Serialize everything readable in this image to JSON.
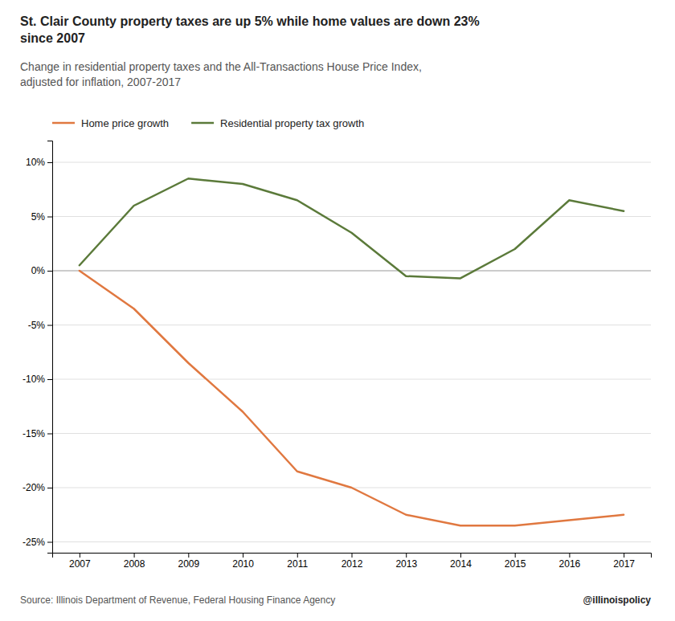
{
  "chart_data": {
    "type": "line",
    "title": "St. Clair County property taxes are up 5% while home values are down 23%\nsince 2007",
    "subtitle": "Change in residential property taxes and the All-Transactions House Price Index,\nadjusted for inflation, 2007-2017",
    "x": [
      2007,
      2008,
      2009,
      2010,
      2011,
      2012,
      2013,
      2014,
      2015,
      2016,
      2017
    ],
    "series": [
      {
        "name": "Home price growth",
        "color": "#E07840",
        "values": [
          0.0,
          -3.5,
          -8.5,
          -13.0,
          -18.5,
          -20.0,
          -22.5,
          -23.5,
          -23.5,
          -23.0,
          -22.5
        ]
      },
      {
        "name": "Residential property tax growth",
        "color": "#5B7A3A",
        "values": [
          0.5,
          6.0,
          8.5,
          8.0,
          6.5,
          3.5,
          -0.5,
          -0.7,
          2.0,
          6.5,
          5.5
        ]
      }
    ],
    "xlim": [
      2006.5,
      2017.5
    ],
    "xticks": [
      2007,
      2008,
      2009,
      2010,
      2011,
      2012,
      2013,
      2014,
      2015,
      2016,
      2017
    ],
    "ylim": [
      -26,
      12
    ],
    "yticks": [
      {
        "value": -25,
        "label": "-25%"
      },
      {
        "value": -20,
        "label": "-20%"
      },
      {
        "value": -15,
        "label": "-15%"
      },
      {
        "value": -10,
        "label": "-10%"
      },
      {
        "value": -5,
        "label": "-5%"
      },
      {
        "value": 0,
        "label": "0%"
      },
      {
        "value": 5,
        "label": "5%"
      },
      {
        "value": 10,
        "label": "10%"
      }
    ],
    "grid": true,
    "legend": "upper left",
    "annotations": [
      "Source: Illinois Department of Revenue, Federal Housing Finance Agency",
      "@illinoispolicy"
    ]
  }
}
